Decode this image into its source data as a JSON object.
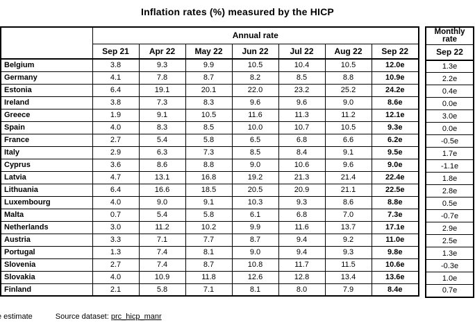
{
  "chart_data": {
    "type": "table",
    "title": "Inflation rates (%) measured by the HICP",
    "annual_label": "Annual rate",
    "monthly_label": "Monthly rate",
    "annual_columns": [
      "Sep 21",
      "Apr 22",
      "May 22",
      "Jun 22",
      "Jul 22",
      "Aug 22",
      "Sep 22"
    ],
    "monthly_column": "Sep 22",
    "unit": "%",
    "rows": [
      {
        "country": "Belgium",
        "annual": [
          "3.8",
          "9.3",
          "9.9",
          "10.5",
          "10.4",
          "10.5",
          "12.0e"
        ],
        "monthly": "1.3e"
      },
      {
        "country": "Germany",
        "annual": [
          "4.1",
          "7.8",
          "8.7",
          "8.2",
          "8.5",
          "8.8",
          "10.9e"
        ],
        "monthly": "2.2e"
      },
      {
        "country": "Estonia",
        "annual": [
          "6.4",
          "19.1",
          "20.1",
          "22.0",
          "23.2",
          "25.2",
          "24.2e"
        ],
        "monthly": "0.4e"
      },
      {
        "country": "Ireland",
        "annual": [
          "3.8",
          "7.3",
          "8.3",
          "9.6",
          "9.6",
          "9.0",
          "8.6e"
        ],
        "monthly": "0.0e"
      },
      {
        "country": "Greece",
        "annual": [
          "1.9",
          "9.1",
          "10.5",
          "11.6",
          "11.3",
          "11.2",
          "12.1e"
        ],
        "monthly": "3.0e"
      },
      {
        "country": "Spain",
        "annual": [
          "4.0",
          "8.3",
          "8.5",
          "10.0",
          "10.7",
          "10.5",
          "9.3e"
        ],
        "monthly": "0.0e"
      },
      {
        "country": "France",
        "annual": [
          "2.7",
          "5.4",
          "5.8",
          "6.5",
          "6.8",
          "6.6",
          "6.2e"
        ],
        "monthly": "-0.5e"
      },
      {
        "country": "Italy",
        "annual": [
          "2.9",
          "6.3",
          "7.3",
          "8.5",
          "8.4",
          "9.1",
          "9.5e"
        ],
        "monthly": "1.7e"
      },
      {
        "country": "Cyprus",
        "annual": [
          "3.6",
          "8.6",
          "8.8",
          "9.0",
          "10.6",
          "9.6",
          "9.0e"
        ],
        "monthly": "-1.1e"
      },
      {
        "country": "Latvia",
        "annual": [
          "4.7",
          "13.1",
          "16.8",
          "19.2",
          "21.3",
          "21.4",
          "22.4e"
        ],
        "monthly": "1.8e"
      },
      {
        "country": "Lithuania",
        "annual": [
          "6.4",
          "16.6",
          "18.5",
          "20.5",
          "20.9",
          "21.1",
          "22.5e"
        ],
        "monthly": "2.8e"
      },
      {
        "country": "Luxembourg",
        "annual": [
          "4.0",
          "9.0",
          "9.1",
          "10.3",
          "9.3",
          "8.6",
          "8.8e"
        ],
        "monthly": "0.5e"
      },
      {
        "country": "Malta",
        "annual": [
          "0.7",
          "5.4",
          "5.8",
          "6.1",
          "6.8",
          "7.0",
          "7.3e"
        ],
        "monthly": "-0.7e"
      },
      {
        "country": "Netherlands",
        "annual": [
          "3.0",
          "11.2",
          "10.2",
          "9.9",
          "11.6",
          "13.7",
          "17.1e"
        ],
        "monthly": "2.9e"
      },
      {
        "country": "Austria",
        "annual": [
          "3.3",
          "7.1",
          "7.7",
          "8.7",
          "9.4",
          "9.2",
          "11.0e"
        ],
        "monthly": "2.5e"
      },
      {
        "country": "Portugal",
        "annual": [
          "1.3",
          "7.4",
          "8.1",
          "9.0",
          "9.4",
          "9.3",
          "9.8e"
        ],
        "monthly": "1.3e"
      },
      {
        "country": "Slovenia",
        "annual": [
          "2.7",
          "7.4",
          "8.7",
          "10.8",
          "11.7",
          "11.5",
          "10.6e"
        ],
        "monthly": "-0.3e"
      },
      {
        "country": "Slovakia",
        "annual": [
          "4.0",
          "10.9",
          "11.8",
          "12.6",
          "12.8",
          "13.4",
          "13.6e"
        ],
        "monthly": "1.0e"
      },
      {
        "country": "Finland",
        "annual": [
          "2.1",
          "5.8",
          "7.1",
          "8.1",
          "8.0",
          "7.9",
          "8.4e"
        ],
        "monthly": "0.7e"
      }
    ]
  },
  "footer": {
    "estimate_note": "e estimate",
    "source_label": "Source dataset:",
    "source_link": "prc_hicp_manr"
  }
}
